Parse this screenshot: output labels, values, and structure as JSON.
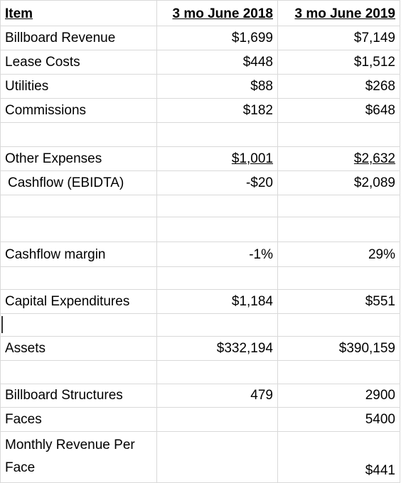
{
  "header": {
    "item": "Item",
    "col1": "3 mo June 2018",
    "col2": "3 mo June 2019"
  },
  "rows": [
    {
      "label": "Billboard Revenue",
      "v2018": "$1,699",
      "v2019": "$7,149"
    },
    {
      "label": "Lease Costs",
      "v2018": "$448",
      "v2019": "$1,512"
    },
    {
      "label": "Utilities",
      "v2018": "$88",
      "v2019": "$268"
    },
    {
      "label": "Commissions",
      "v2018": "$182",
      "v2019": "$648"
    },
    {
      "label": "Other Expenses",
      "v2018": "$1,001",
      "v2019": "$2,632"
    },
    {
      "label": "Cashflow (EBIDTA)",
      "v2018": "-$20",
      "v2019": "$2,089"
    },
    {
      "label": "Cashflow margin",
      "v2018": "-1%",
      "v2019": "29%"
    },
    {
      "label": "Capital Expenditures",
      "v2018": "$1,184",
      "v2019": "$551"
    },
    {
      "label": "Assets",
      "v2018": "$332,194",
      "v2019": "$390,159"
    },
    {
      "label": "Billboard Structures",
      "v2018": "479",
      "v2019": "2900"
    },
    {
      "label": "Faces",
      "v2019": "5400"
    },
    {
      "label": "Monthly Revenue Per Face",
      "v2019": "$441"
    }
  ]
}
